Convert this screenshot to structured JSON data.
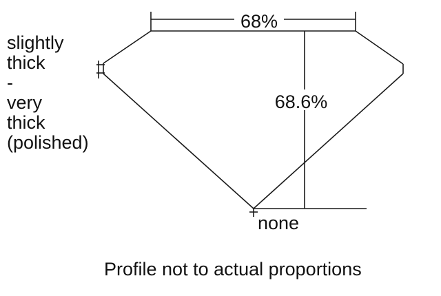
{
  "girdle_label": [
    "slightly",
    "thick",
    "-",
    "very",
    "thick",
    "(polished)"
  ],
  "table_label": "68%",
  "depth_label": "68.6%",
  "culet_label": "none",
  "caption": "Profile not to actual proportions",
  "line_color": "#1a1a1a"
}
